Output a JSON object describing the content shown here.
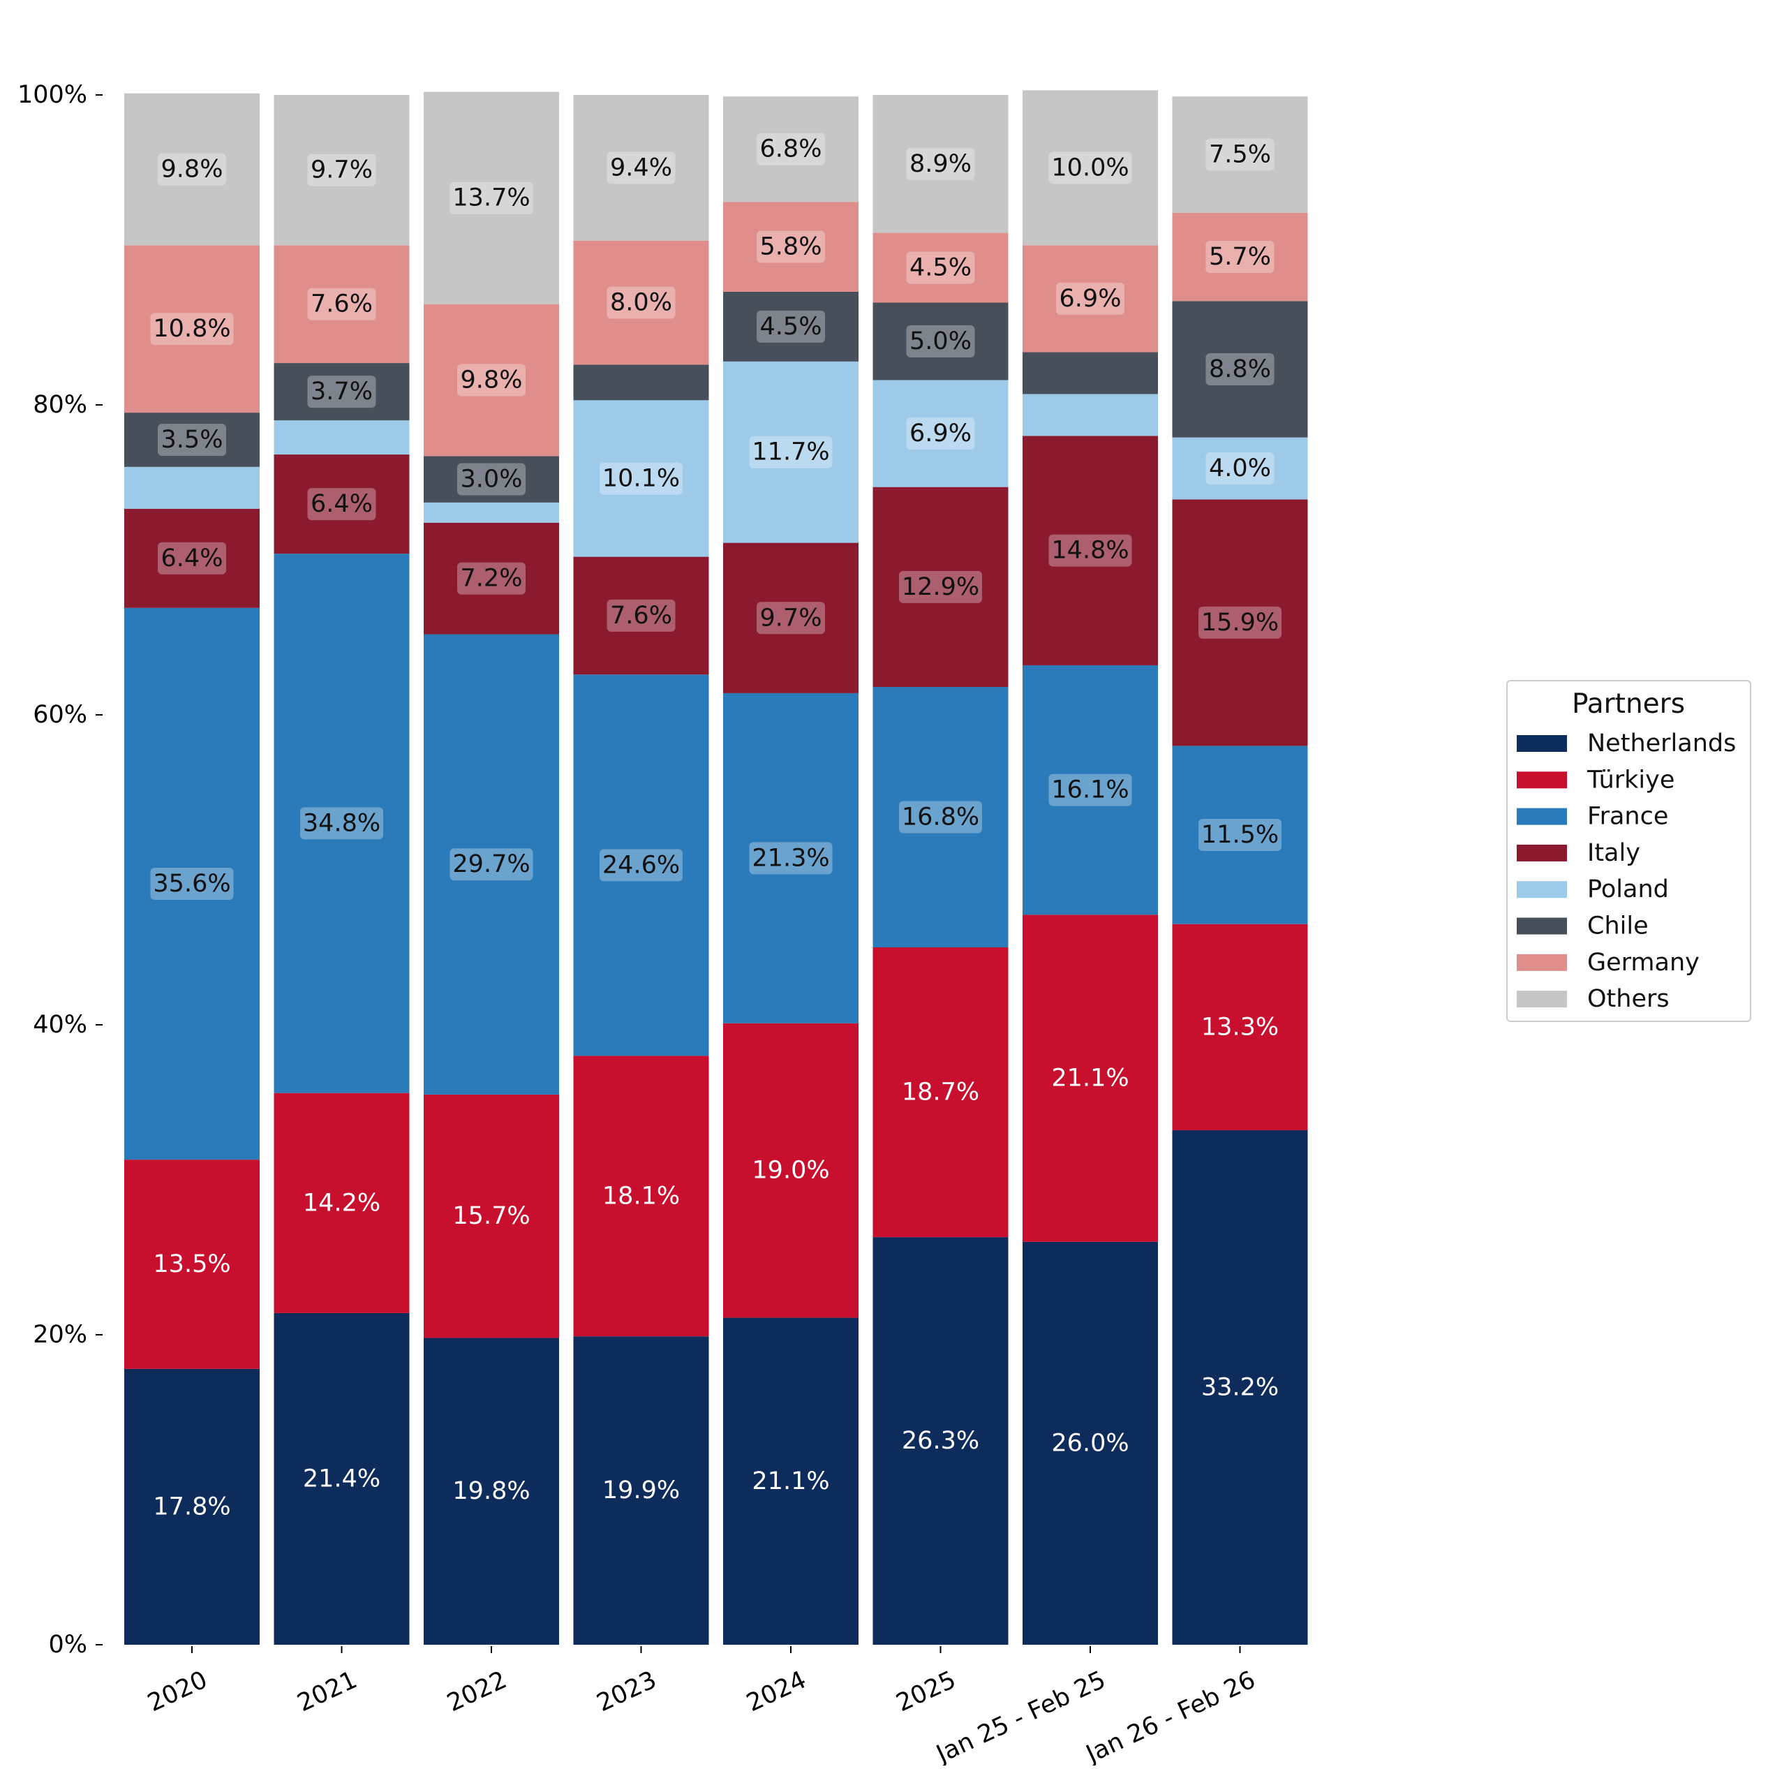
{
  "chart_data": {
    "type": "bar",
    "stacked": true,
    "categories": [
      "2020",
      "2021",
      "2022",
      "2023",
      "2024",
      "2025",
      "Jan 25 - Feb 25",
      "Jan 26 - Feb 26"
    ],
    "series": [
      {
        "name": "Netherlands",
        "color": "#0d2b5b",
        "label_color": "#ffffff",
        "labels_on": true,
        "values": [
          17.8,
          21.4,
          19.8,
          19.9,
          21.1,
          26.3,
          26.0,
          33.2
        ]
      },
      {
        "name": "Türkiye",
        "color": "#c8102e",
        "label_color": "#ffffff",
        "labels_on": true,
        "values": [
          13.5,
          14.2,
          15.7,
          18.1,
          19.0,
          18.7,
          21.1,
          13.3
        ]
      },
      {
        "name": "France",
        "color": "#2b7bba",
        "label_color": "#111111",
        "labels_on": true,
        "values": [
          35.6,
          34.8,
          29.7,
          24.6,
          21.3,
          16.8,
          16.1,
          11.5
        ]
      },
      {
        "name": "Italy",
        "color": "#8b1a2f",
        "label_color": "#111111",
        "labels_on": true,
        "values": [
          6.4,
          6.4,
          7.2,
          7.6,
          9.7,
          12.9,
          14.8,
          15.9
        ]
      },
      {
        "name": "Poland",
        "color": "#9ecae9",
        "label_color": "#111111",
        "labels_on": true,
        "values": [
          2.7,
          2.2,
          1.3,
          10.1,
          11.7,
          6.9,
          2.7,
          4.0
        ]
      },
      {
        "name": "Chile",
        "color": "#474f5a",
        "label_color": "#111111",
        "labels_on": true,
        "values": [
          3.5,
          3.7,
          3.0,
          2.3,
          4.5,
          5.0,
          2.7,
          8.8
        ]
      },
      {
        "name": "Germany",
        "color": "#e08e8b",
        "label_color": "#111111",
        "labels_on": true,
        "values": [
          10.8,
          7.6,
          9.8,
          8.0,
          5.8,
          4.5,
          6.9,
          5.7
        ]
      },
      {
        "name": "Others",
        "color": "#c6c6c6",
        "label_color": "#111111",
        "labels_on": true,
        "values": [
          9.8,
          9.7,
          13.7,
          9.4,
          6.8,
          8.9,
          10.0,
          7.5
        ]
      }
    ],
    "label_min_value": 3.0,
    "value_suffix": "%",
    "ylim": [
      0,
      100
    ],
    "yticks": [
      0,
      20,
      40,
      60,
      80,
      100
    ],
    "ytick_labels": [
      "0%",
      "20%",
      "40%",
      "60%",
      "80%",
      "100%"
    ],
    "xtick_rotation_deg": -25,
    "legend": {
      "title": "Partners",
      "placement": "right"
    },
    "grid": false
  }
}
